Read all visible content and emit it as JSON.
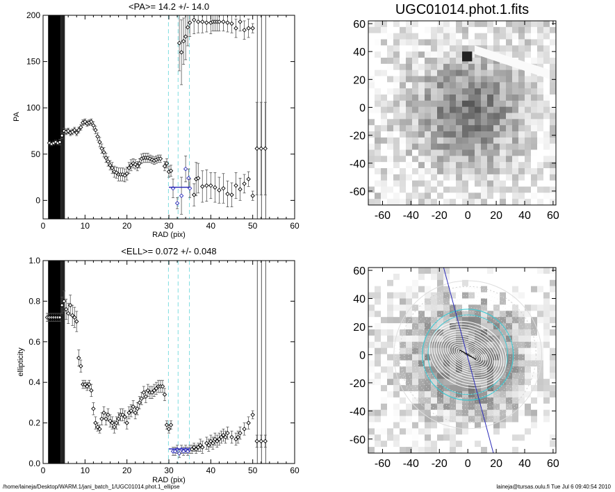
{
  "footer": {
    "left": "/home/laineja/Desktop/WARM.1/jani_batch_1/UGC01014.phot.1_ellipse",
    "right": "laineja@tursas.oulu.fi  Tue Jul  6 09:40:54 2010"
  },
  "images": {
    "top_title": "UGC01014.phot.1.fits",
    "range": [
      -70,
      62
    ],
    "ticks": [
      -60,
      -40,
      -20,
      0,
      20,
      40,
      60
    ]
  },
  "chart_data": [
    {
      "type": "scatter",
      "title": "<PA>=  14.2 +/-  14.0",
      "xlabel": "RAD (pix)",
      "ylabel": "PA",
      "xlim": [
        0,
        60
      ],
      "ylim": [
        -20,
        200
      ],
      "xticks": [
        0,
        10,
        20,
        30,
        40,
        50,
        60
      ],
      "yticks": [
        0,
        50,
        100,
        150,
        200
      ],
      "excluded_band": [
        1.2,
        4.2
      ],
      "vlines_dashed": [
        29.9,
        32.2,
        34.9
      ],
      "vlines_solid": [
        51.1,
        52.1,
        53.1
      ],
      "mean_segment": {
        "x": [
          30.0,
          35.0
        ],
        "y": 14.2
      },
      "series": [
        {
          "points": [
            [
              1.5,
              62,
              2
            ],
            [
              2.0,
              61,
              2
            ],
            [
              2.5,
              62,
              2
            ],
            [
              3.0,
              63,
              2
            ],
            [
              3.5,
              62,
              2
            ],
            [
              4.0,
              63,
              3
            ],
            [
              4.5,
              70,
              3
            ],
            [
              5.0,
              75,
              3
            ],
            [
              5.5,
              74,
              3
            ],
            [
              6.0,
              75,
              3
            ],
            [
              6.5,
              73,
              3
            ],
            [
              7.0,
              74,
              3
            ],
            [
              7.5,
              76,
              3
            ],
            [
              8.0,
              73,
              3
            ],
            [
              8.5,
              76,
              3
            ],
            [
              9.0,
              79,
              3
            ],
            [
              9.5,
              84,
              3
            ],
            [
              10.0,
              85,
              3
            ],
            [
              10.5,
              83,
              3
            ],
            [
              11.0,
              84,
              3
            ],
            [
              11.5,
              85,
              3
            ],
            [
              12.0,
              81,
              4
            ],
            [
              12.5,
              76,
              4
            ],
            [
              13.0,
              69,
              4
            ],
            [
              13.5,
              63,
              5
            ],
            [
              14.0,
              56,
              5
            ],
            [
              14.5,
              52,
              5
            ],
            [
              15.0,
              46,
              5
            ],
            [
              15.5,
              42,
              5
            ],
            [
              16.0,
              38,
              5
            ],
            [
              16.5,
              35,
              6
            ],
            [
              17.0,
              31,
              6
            ],
            [
              17.5,
              30,
              6
            ],
            [
              18.0,
              28,
              7
            ],
            [
              18.5,
              28,
              7
            ],
            [
              19.0,
              28,
              7
            ],
            [
              19.5,
              27,
              7
            ],
            [
              20.0,
              29,
              7
            ],
            [
              20.5,
              35,
              6
            ],
            [
              21.0,
              38,
              6
            ],
            [
              21.5,
              40,
              5
            ],
            [
              22.0,
              39,
              5
            ],
            [
              22.5,
              37,
              5
            ],
            [
              23.0,
              40,
              5
            ],
            [
              23.5,
              45,
              5
            ],
            [
              24.0,
              46,
              5
            ],
            [
              24.5,
              46,
              5
            ],
            [
              25.0,
              46,
              5
            ],
            [
              25.5,
              45,
              4
            ],
            [
              26.0,
              44,
              4
            ],
            [
              26.5,
              43,
              4
            ],
            [
              27.0,
              44,
              4
            ],
            [
              27.5,
              45,
              4
            ],
            [
              28.0,
              45,
              4
            ],
            [
              29.0,
              37,
              5
            ],
            [
              29.5,
              40,
              5
            ],
            [
              30.0,
              31,
              6
            ],
            [
              30.5,
              32,
              6
            ],
            [
              31.0,
              13,
              10
            ],
            [
              32.0,
              -3,
              6
            ],
            [
              33.0,
              5,
              20
            ],
            [
              34.0,
              34,
              14
            ],
            [
              34.7,
              24,
              10
            ],
            [
              35.0,
              13,
              10
            ],
            [
              36.0,
              6,
              12
            ],
            [
              36.5,
              23,
              18
            ],
            [
              37.0,
              24,
              16
            ],
            [
              38.0,
              15,
              17
            ],
            [
              39.0,
              16,
              17
            ],
            [
              40.0,
              16,
              14
            ],
            [
              41.0,
              14,
              16
            ],
            [
              42.0,
              11,
              14
            ],
            [
              43.0,
              13,
              16
            ],
            [
              44.0,
              7,
              14
            ],
            [
              45.0,
              6,
              13
            ],
            [
              46.0,
              16,
              14
            ],
            [
              47.0,
              12,
              12
            ],
            [
              48.0,
              18,
              10
            ],
            [
              49.0,
              23,
              8
            ],
            [
              50.0,
              5,
              5
            ],
            [
              51.0,
              56,
              50
            ],
            [
              52.0,
              56,
              50
            ],
            [
              53.0,
              56,
              50
            ],
            [
              32.5,
              170,
              30
            ],
            [
              33.0,
              160,
              35
            ],
            [
              33.5,
              172,
              25
            ],
            [
              34.0,
              177,
              25
            ],
            [
              34.5,
              187,
              20
            ],
            [
              35.0,
              192,
              15
            ],
            [
              36.0,
              195,
              15
            ],
            [
              37.0,
              193,
              12
            ],
            [
              38.0,
              193,
              12
            ],
            [
              39.0,
              192,
              10
            ],
            [
              40.0,
              192,
              12
            ],
            [
              40.5,
              193,
              10
            ],
            [
              41.0,
              193,
              10
            ],
            [
              41.5,
              193,
              10
            ],
            [
              42.0,
              193,
              10
            ],
            [
              43.0,
              193,
              10
            ],
            [
              44.0,
              192,
              10
            ],
            [
              45.0,
              191,
              10
            ],
            [
              46.0,
              186,
              10
            ],
            [
              47.0,
              193,
              10
            ],
            [
              48.0,
              184,
              10
            ],
            [
              49.0,
              186,
              10
            ],
            [
              50.0,
              186,
              5
            ]
          ]
        }
      ]
    },
    {
      "type": "scatter",
      "title": "<ELL>= 0.072 +/-  0.048",
      "xlabel": "RAD (pix)",
      "ylabel": "ellipticity",
      "xlim": [
        0,
        60
      ],
      "ylim": [
        0.0,
        1.0
      ],
      "xticks": [
        0,
        10,
        20,
        30,
        40,
        50,
        60
      ],
      "yticks": [
        0.0,
        0.2,
        0.4,
        0.6,
        0.8,
        1.0
      ],
      "ytick_labels": [
        "0.0",
        "0.2",
        "0.4",
        "0.6",
        "0.8",
        "1.0"
      ],
      "excluded_band": [
        1.2,
        4.2
      ],
      "vlines_dashed": [
        29.9,
        32.2,
        34.9
      ],
      "vlines_solid": [
        51.1,
        52.1,
        53.1
      ],
      "mean_segment": {
        "x": [
          30.0,
          35.0
        ],
        "y": 0.072
      },
      "series": [
        {
          "points": [
            [
              1.0,
              0.72,
              0.02
            ],
            [
              1.5,
              0.72,
              0.02
            ],
            [
              2.0,
              0.72,
              0.02
            ],
            [
              2.5,
              0.72,
              0.02
            ],
            [
              3.0,
              0.72,
              0.02
            ],
            [
              3.5,
              0.72,
              0.02
            ],
            [
              4.0,
              0.72,
              0.02
            ],
            [
              4.5,
              0.78,
              0.04
            ],
            [
              5.0,
              0.8,
              0.05
            ],
            [
              5.5,
              0.76,
              0.05
            ],
            [
              6.0,
              0.74,
              0.05
            ],
            [
              6.5,
              0.78,
              0.05
            ],
            [
              7.0,
              0.73,
              0.05
            ],
            [
              7.5,
              0.72,
              0.05
            ],
            [
              8.0,
              0.7,
              0.05
            ],
            [
              8.5,
              0.52,
              0.04
            ],
            [
              9.0,
              0.48,
              0.03
            ],
            [
              9.5,
              0.39,
              0.02
            ],
            [
              10.0,
              0.39,
              0.02
            ],
            [
              10.5,
              0.38,
              0.02
            ],
            [
              11.0,
              0.39,
              0.02
            ],
            [
              11.5,
              0.36,
              0.03
            ],
            [
              12.0,
              0.27,
              0.03
            ],
            [
              12.5,
              0.2,
              0.03
            ],
            [
              13.0,
              0.18,
              0.02
            ],
            [
              13.5,
              0.17,
              0.02
            ],
            [
              14.0,
              0.22,
              0.03
            ],
            [
              14.5,
              0.25,
              0.03
            ],
            [
              15.0,
              0.22,
              0.03
            ],
            [
              15.5,
              0.24,
              0.03
            ],
            [
              16.0,
              0.21,
              0.03
            ],
            [
              16.5,
              0.2,
              0.03
            ],
            [
              17.0,
              0.18,
              0.03
            ],
            [
              17.5,
              0.2,
              0.03
            ],
            [
              18.0,
              0.22,
              0.03
            ],
            [
              18.5,
              0.24,
              0.03
            ],
            [
              19.0,
              0.24,
              0.03
            ],
            [
              19.5,
              0.23,
              0.03
            ],
            [
              20.0,
              0.2,
              0.03
            ],
            [
              20.5,
              0.25,
              0.03
            ],
            [
              21.0,
              0.26,
              0.03
            ],
            [
              21.5,
              0.28,
              0.03
            ],
            [
              22.0,
              0.25,
              0.03
            ],
            [
              22.5,
              0.27,
              0.03
            ],
            [
              23.0,
              0.3,
              0.03
            ],
            [
              23.5,
              0.32,
              0.03
            ],
            [
              24.0,
              0.35,
              0.03
            ],
            [
              24.5,
              0.33,
              0.03
            ],
            [
              25.0,
              0.36,
              0.03
            ],
            [
              25.5,
              0.35,
              0.03
            ],
            [
              26.0,
              0.35,
              0.03
            ],
            [
              26.5,
              0.36,
              0.03
            ],
            [
              27.0,
              0.37,
              0.03
            ],
            [
              27.5,
              0.38,
              0.03
            ],
            [
              28.0,
              0.38,
              0.03
            ],
            [
              28.5,
              0.38,
              0.03
            ],
            [
              29.0,
              0.34,
              0.03
            ],
            [
              29.5,
              0.19,
              0.02
            ],
            [
              30.0,
              0.17,
              0.02
            ],
            [
              30.5,
              0.19,
              0.02
            ],
            [
              31.0,
              0.06,
              0.02
            ],
            [
              31.5,
              0.06,
              0.02
            ],
            [
              32.0,
              0.07,
              0.02
            ],
            [
              32.5,
              0.05,
              0.02
            ],
            [
              33.0,
              0.07,
              0.02
            ],
            [
              33.5,
              0.06,
              0.02
            ],
            [
              34.0,
              0.07,
              0.02
            ],
            [
              34.5,
              0.06,
              0.02
            ],
            [
              35.0,
              0.07,
              0.02
            ],
            [
              35.5,
              0.07,
              0.02
            ],
            [
              36.0,
              0.08,
              0.02
            ],
            [
              36.5,
              0.07,
              0.02
            ],
            [
              37.0,
              0.08,
              0.02
            ],
            [
              37.5,
              0.09,
              0.03
            ],
            [
              38.0,
              0.08,
              0.03
            ],
            [
              39.0,
              0.1,
              0.03
            ],
            [
              39.5,
              0.09,
              0.03
            ],
            [
              40.0,
              0.11,
              0.03
            ],
            [
              40.5,
              0.1,
              0.03
            ],
            [
              41.0,
              0.12,
              0.03
            ],
            [
              41.5,
              0.11,
              0.03
            ],
            [
              42.0,
              0.12,
              0.03
            ],
            [
              42.5,
              0.13,
              0.03
            ],
            [
              43.0,
              0.14,
              0.03
            ],
            [
              43.5,
              0.13,
              0.03
            ],
            [
              44.0,
              0.15,
              0.03
            ],
            [
              45.0,
              0.13,
              0.03
            ],
            [
              46.0,
              0.12,
              0.03
            ],
            [
              46.5,
              0.13,
              0.03
            ],
            [
              47.0,
              0.15,
              0.03
            ],
            [
              48.0,
              0.17,
              0.03
            ],
            [
              49.0,
              0.2,
              0.03
            ],
            [
              50.0,
              0.24,
              0.02
            ],
            [
              51.0,
              0.11,
              0.03
            ],
            [
              52.0,
              0.11,
              0.03
            ],
            [
              53.0,
              0.11,
              0.03
            ]
          ]
        }
      ]
    }
  ]
}
